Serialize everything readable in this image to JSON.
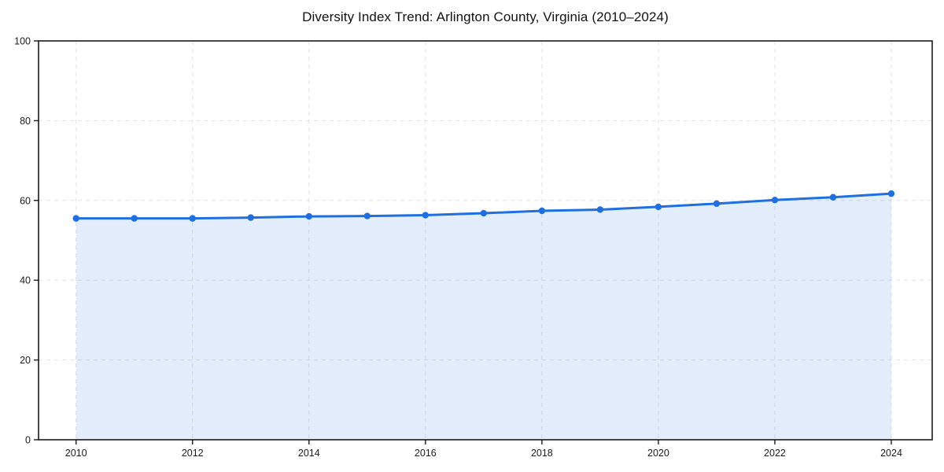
{
  "chart_data": {
    "type": "area",
    "title": "Diversity Index Trend: Arlington County, Virginia (2010–2024)",
    "x": [
      2010,
      2011,
      2012,
      2013,
      2014,
      2015,
      2016,
      2017,
      2018,
      2019,
      2020,
      2021,
      2022,
      2023,
      2024
    ],
    "series": [
      {
        "name": "Diversity Index",
        "values": [
          55.5,
          55.5,
          55.5,
          55.7,
          56.0,
          56.1,
          56.3,
          56.8,
          57.4,
          57.7,
          58.4,
          59.2,
          60.1,
          60.8,
          61.7
        ]
      }
    ],
    "xlabel": "",
    "ylabel": "",
    "ylim": [
      0,
      100
    ],
    "yticks": [
      0,
      20,
      40,
      60,
      80,
      100
    ],
    "xticks": [
      2010,
      2012,
      2014,
      2016,
      2018,
      2020,
      2022,
      2024
    ],
    "grid": {
      "show": true,
      "style": "dashed",
      "color": "#e2e2e2"
    },
    "legend": {
      "show": false,
      "position": "none"
    },
    "line_color": "#1f6fe0",
    "marker": "circle",
    "marker_color": "#1f6fe0",
    "fill_color": "#1f6fe0",
    "fill_opacity": 0.12,
    "axis_color": "#1a1a1a",
    "tick_label_color": "#1a1a1a",
    "background_color": "#ffffff"
  }
}
